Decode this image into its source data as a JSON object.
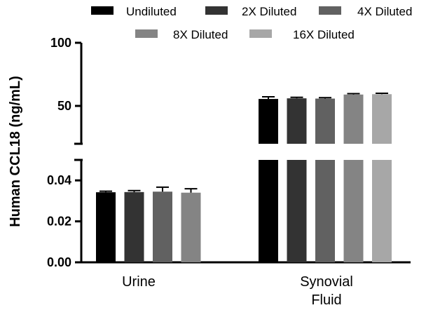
{
  "chart_data": {
    "type": "bar",
    "ylabel": "Human CCL18 (ng/mL)",
    "categories": [
      "Urine",
      "Synovial\nFluid"
    ],
    "category_lines": [
      [
        "Urine"
      ],
      [
        "Synovial",
        "Fluid"
      ]
    ],
    "axis_break": true,
    "lower_axis": {
      "ylim": [
        0,
        0.05
      ],
      "ticks": [
        "0.00",
        "0.02",
        "0.04"
      ],
      "tick_values": [
        0,
        0.02,
        0.04
      ]
    },
    "upper_axis": {
      "ylim": [
        20,
        100
      ],
      "ticks": [
        "50",
        "100"
      ],
      "tick_values": [
        50,
        100
      ]
    },
    "legend_placement": "top",
    "series": [
      {
        "name": "Undiluted",
        "color": "#000000",
        "values": [
          0.0342,
          55.5
        ],
        "errors": [
          0.0005,
          1.7
        ]
      },
      {
        "name": "2X Diluted",
        "color": "#333333",
        "values": [
          0.0343,
          56.0
        ],
        "errors": [
          0.0007,
          0.8
        ]
      },
      {
        "name": "4X Diluted",
        "color": "#616161",
        "values": [
          0.0345,
          55.8
        ],
        "errors": [
          0.0022,
          0.7
        ]
      },
      {
        "name": "8X Diluted",
        "color": "#848484",
        "values": [
          0.034,
          59.0
        ],
        "errors": [
          0.0019,
          0.7
        ]
      },
      {
        "name": "16X Diluted",
        "color": "#a7a7a7",
        "values": [
          null,
          59.3
        ],
        "errors": [
          null,
          0.7
        ]
      }
    ]
  }
}
